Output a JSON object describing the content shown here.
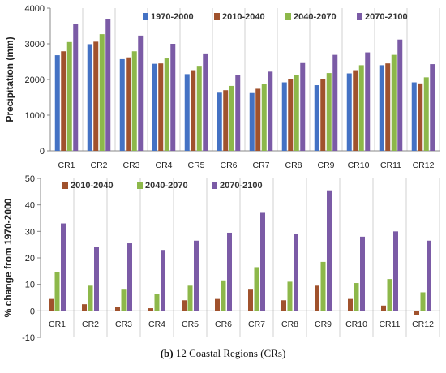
{
  "caption": {
    "label": "(b)",
    "text": "12 Coastal Regions (CRs)"
  },
  "chart_data": [
    {
      "type": "bar",
      "categories": [
        "CR1",
        "CR2",
        "CR3",
        "CR4",
        "CR5",
        "CR6",
        "CR7",
        "CR8",
        "CR9",
        "CR10",
        "CR11",
        "CR12"
      ],
      "ylabel": "Precipitation (mm)",
      "ylim": [
        0,
        4000
      ],
      "yticks": [
        0,
        1000,
        2000,
        3000,
        4000
      ],
      "grid": "vertical",
      "legend": "top-right",
      "series": [
        {
          "name": "1970-2000",
          "color": "#4472C4",
          "values": [
            2680,
            2990,
            2570,
            2440,
            2150,
            1630,
            1620,
            1920,
            1840,
            2170,
            2400,
            1920
          ]
        },
        {
          "name": "2010-2040",
          "color": "#A0522D",
          "values": [
            2790,
            3060,
            2620,
            2450,
            2260,
            1700,
            1740,
            2000,
            2010,
            2260,
            2450,
            1890
          ]
        },
        {
          "name": "2040-2070",
          "color": "#8DB84A",
          "values": [
            3050,
            3270,
            2790,
            2590,
            2360,
            1820,
            1880,
            2120,
            2180,
            2400,
            2690,
            2060
          ]
        },
        {
          "name": "2070-2100",
          "color": "#7B5BA6",
          "values": [
            3550,
            3700,
            3230,
            3000,
            2730,
            2120,
            2220,
            2460,
            2690,
            2760,
            3120,
            2430
          ]
        }
      ]
    },
    {
      "type": "bar",
      "categories": [
        "CR1",
        "CR2",
        "CR3",
        "CR4",
        "CR5",
        "CR6",
        "CR7",
        "CR8",
        "CR9",
        "CR10",
        "CR11",
        "CR12"
      ],
      "ylabel": "% change from 1970-2000",
      "ylim": [
        -10,
        50
      ],
      "yticks": [
        -10,
        0,
        10,
        20,
        30,
        40,
        50
      ],
      "grid": "vertical",
      "legend": "top-left",
      "series": [
        {
          "name": "2010-2040",
          "color": "#A0522D",
          "values": [
            4.5,
            2.5,
            1.5,
            1.0,
            4.0,
            4.5,
            8.0,
            4.0,
            9.5,
            4.5,
            2.0,
            -1.5
          ]
        },
        {
          "name": "2040-2070",
          "color": "#8DB84A",
          "values": [
            14.5,
            9.5,
            8.0,
            6.5,
            9.5,
            11.5,
            16.5,
            11.0,
            18.5,
            10.5,
            12.0,
            7.0
          ]
        },
        {
          "name": "2070-2100",
          "color": "#7B5BA6",
          "values": [
            33.0,
            24.0,
            25.5,
            23.0,
            26.5,
            29.5,
            37.0,
            29.0,
            45.5,
            28.0,
            30.0,
            26.5
          ]
        }
      ]
    }
  ]
}
